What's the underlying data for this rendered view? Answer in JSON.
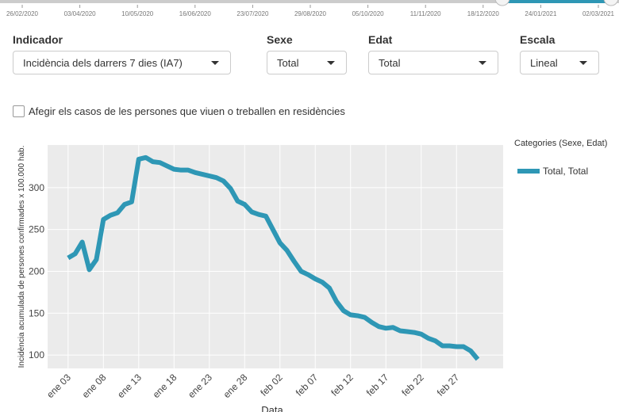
{
  "timeline": {
    "labels": [
      "26/02/2020",
      "03/04/2020",
      "10/05/2020",
      "16/06/2020",
      "23/07/2020",
      "29/08/2020",
      "05/10/2020",
      "11/11/2020",
      "18/12/2020",
      "24/01/2021",
      "02/03/2021"
    ]
  },
  "controls": [
    {
      "label": "Indicador",
      "value": "Incidència dels darrers 7 dies (IA7)"
    },
    {
      "label": "Sexe",
      "value": "Total"
    },
    {
      "label": "Edat",
      "value": "Total"
    },
    {
      "label": "Escala",
      "value": "Lineal"
    }
  ],
  "checkbox": "Afegir els casos de les persones que viuen o treballen en residències",
  "chart_data": {
    "type": "line",
    "y_label": "Incidència acumulada de persones confirmades x 100.000 hab.",
    "x_label": "Data",
    "legend_title": "Categories (Sexe, Edat)",
    "grid": true,
    "x": [
      3,
      4,
      5,
      6,
      7,
      8,
      9,
      10,
      11,
      12,
      13,
      14,
      15,
      16,
      17,
      18,
      19,
      20,
      21,
      22,
      23,
      24,
      25,
      26,
      27,
      28,
      29,
      30,
      31,
      32,
      33,
      34,
      35,
      36,
      37,
      38,
      39,
      40,
      41,
      42,
      43,
      44,
      45,
      46,
      47,
      48,
      49,
      50,
      51,
      52,
      53,
      54,
      55,
      56,
      57,
      58,
      59,
      60,
      61
    ],
    "xlim": [
      0.1,
      64.6
    ],
    "xticks": [
      {
        "value": 3,
        "label": "ene 03"
      },
      {
        "value": 8,
        "label": "ene 08"
      },
      {
        "value": 13,
        "label": "ene 13"
      },
      {
        "value": 18,
        "label": "ene 18"
      },
      {
        "value": 23,
        "label": "ene 23"
      },
      {
        "value": 28,
        "label": "ene 28"
      },
      {
        "value": 33,
        "label": "feb 02"
      },
      {
        "value": 38,
        "label": "feb 07"
      },
      {
        "value": 43,
        "label": "feb 12"
      },
      {
        "value": 48,
        "label": "feb 17"
      },
      {
        "value": 53,
        "label": "feb 22"
      },
      {
        "value": 58,
        "label": "feb 27"
      }
    ],
    "ylim": [
      84,
      351
    ],
    "yticks": [
      100,
      150,
      200,
      250,
      300
    ],
    "series": [
      {
        "name": "Total, Total",
        "color": "#2e97b5",
        "values": [
          216,
          221,
          235,
          202,
          214,
          262,
          267,
          270,
          280,
          283,
          334,
          336,
          331,
          330,
          326,
          322,
          321,
          321,
          318,
          316,
          314,
          312,
          308,
          299,
          284,
          280,
          271,
          268,
          266,
          250,
          234,
          225,
          212,
          200,
          196,
          191,
          187,
          180,
          164,
          153,
          148,
          147,
          145,
          139,
          134,
          132,
          133,
          129,
          128,
          127,
          125,
          120,
          117,
          111,
          111,
          110,
          110,
          105,
          95
        ]
      }
    ]
  }
}
